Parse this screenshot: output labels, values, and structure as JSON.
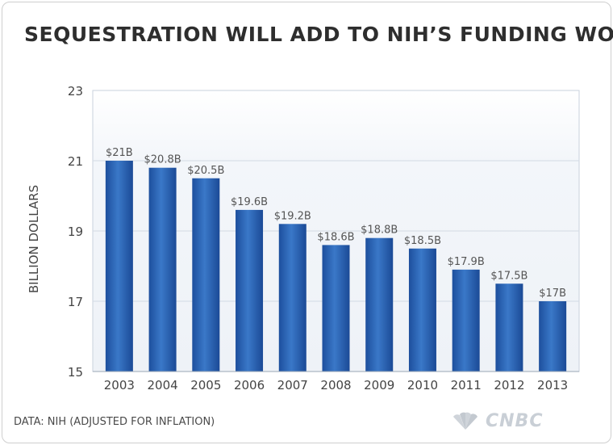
{
  "title": "SEQUESTRATION WILL ADD TO NIH’S FUNDING WOES",
  "source": "DATA: NIH (ADJUSTED FOR INFLATION)",
  "logo_text": "CNBC",
  "colors": {
    "bar": "#2a64b4",
    "bar_dark": "#1b4d99",
    "grid": "#d6dde6",
    "plot_top": "#eef2f7"
  },
  "chart_data": {
    "type": "bar",
    "title": "SEQUESTRATION WILL ADD TO NIH’S FUNDING WOES",
    "xlabel": "",
    "ylabel": "BILLION DOLLARS",
    "ylim": [
      15,
      23
    ],
    "yticks": [
      15,
      17,
      19,
      21,
      23
    ],
    "grid": true,
    "categories": [
      "2003",
      "2004",
      "2005",
      "2006",
      "2007",
      "2008",
      "2009",
      "2010",
      "2011",
      "2012",
      "2013"
    ],
    "values": [
      21,
      20.8,
      20.5,
      19.6,
      19.2,
      18.6,
      18.8,
      18.5,
      17.9,
      17.5,
      17
    ],
    "data_labels": [
      "$21B",
      "$20.8B",
      "$20.5B",
      "$19.6B",
      "$19.2B",
      "$18.6B",
      "$18.8B",
      "$18.5B",
      "$17.9B",
      "$17.5B",
      "$17B"
    ]
  }
}
